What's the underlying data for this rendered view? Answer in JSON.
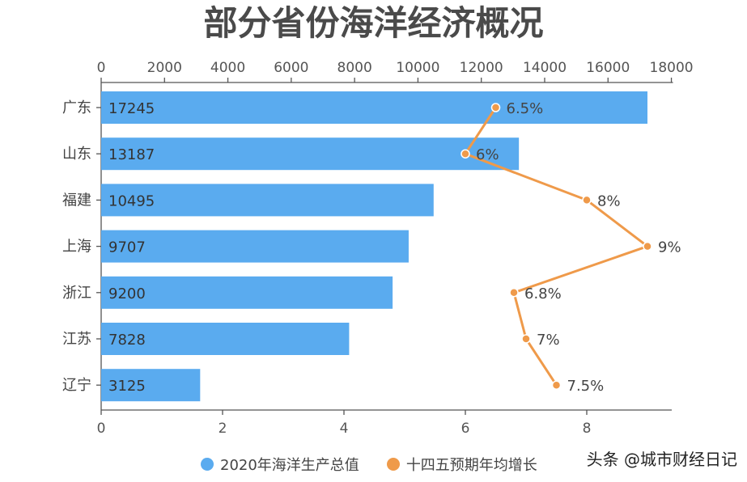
{
  "chart_data": {
    "type": "bar",
    "title": "部分省份海洋经济概况",
    "categories": [
      "广东",
      "山东",
      "福建",
      "上海",
      "浙江",
      "江苏",
      "辽宁"
    ],
    "series": [
      {
        "name": "2020年海洋生产总值",
        "type": "bar",
        "axis": "top",
        "values": [
          17245,
          13187,
          10495,
          9707,
          9200,
          7828,
          3125
        ],
        "labels": [
          "17245",
          "13187",
          "10495",
          "9707",
          "9200",
          "7828",
          "3125"
        ],
        "color": "#5aabef"
      },
      {
        "name": "十四五预期年均增长",
        "type": "line",
        "axis": "bottom",
        "values": [
          6.5,
          6,
          8,
          9,
          6.8,
          7,
          7.5
        ],
        "labels": [
          "6.5%",
          "6%",
          "8%",
          "9%",
          "6.8%",
          "7%",
          "7.5%"
        ],
        "color": "#ef9a4a"
      }
    ],
    "x_top": {
      "min": 0,
      "max": 18000,
      "ticks": [
        "0",
        "2000",
        "4000",
        "6000",
        "8000",
        "10000",
        "12000",
        "14000",
        "16000",
        "18000"
      ]
    },
    "x_bottom": {
      "min": 0,
      "max": 9.4,
      "ticks": [
        "0",
        "2",
        "4",
        "6",
        "8"
      ]
    },
    "legend_position": "bottom",
    "grid": false
  },
  "watermark": "头条 @城市财经日记"
}
